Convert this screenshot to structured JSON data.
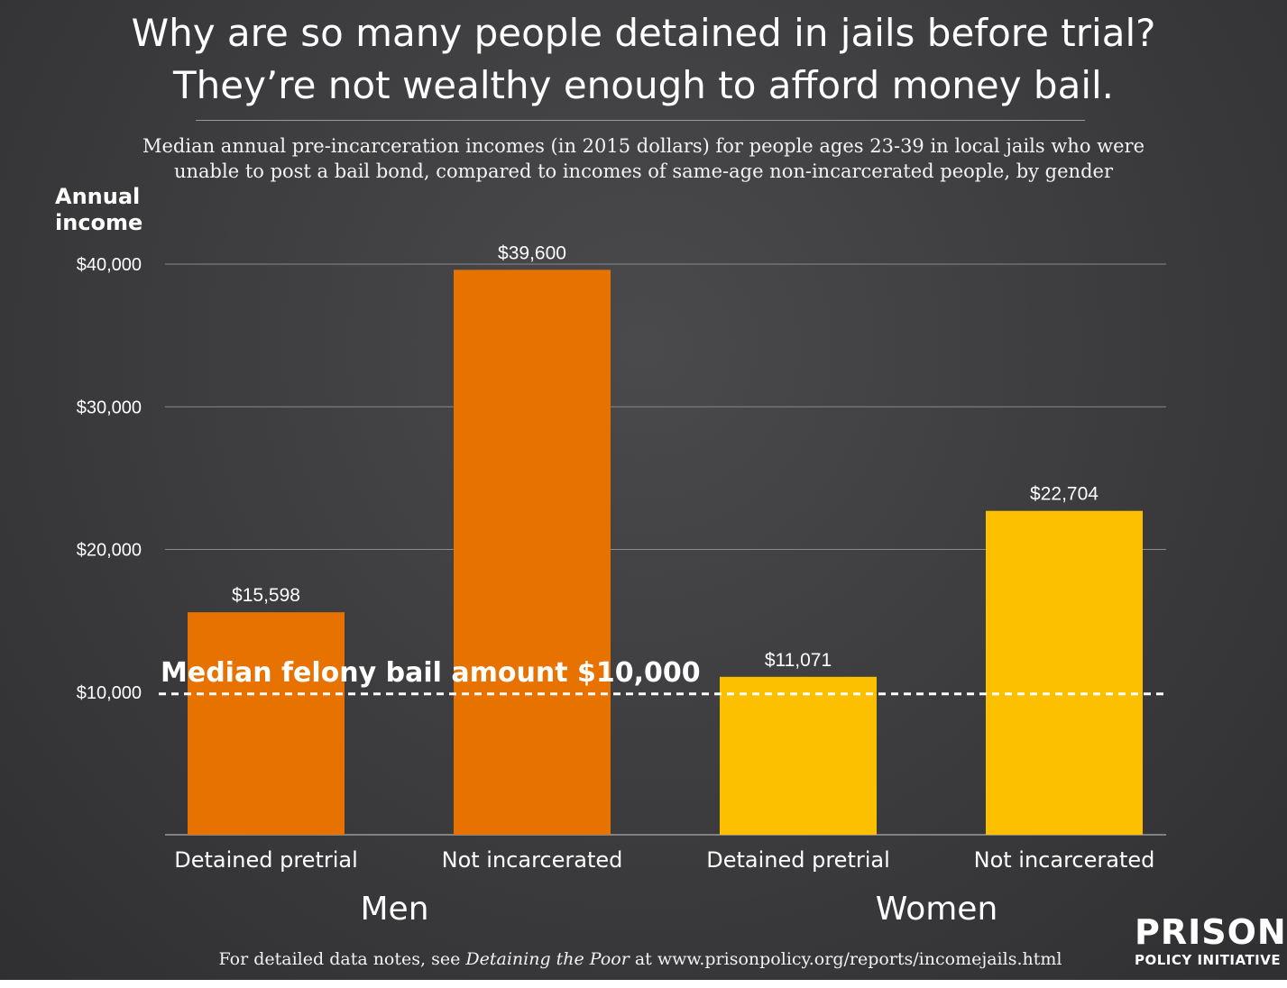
{
  "title_line1": "Why are so many people detained in jails before trial?",
  "title_line2": "They’re not wealthy enough to afford money bail.",
  "subtitle_line1": "Median annual pre-incarceration incomes (in 2015 dollars) for people ages 23-39 in local jails who were",
  "subtitle_line2": "unable to post a bail bond, compared to incomes of same-age non-incarcerated people, by gender",
  "ylabel_line1": "Annual",
  "ylabel_line2": "income",
  "footer": {
    "prefix": "For detailed data notes, see ",
    "italic": "Detaining the Poor",
    "suffix": " at www.prisonpolicy.org/reports/incomejails.html"
  },
  "logo": {
    "top": "PRISON",
    "bottom": "POLICY INITIATIVE"
  },
  "colors": {
    "men": "#e87200",
    "women": "#fdc000",
    "background": "#3f3f41"
  },
  "chart_data": {
    "type": "bar",
    "categories": [
      "Detained pretrial",
      "Not incarcerated",
      "Detained pretrial",
      "Not incarcerated"
    ],
    "groups": [
      {
        "label": "Men",
        "color": "#e87200",
        "indices": [
          0,
          1
        ]
      },
      {
        "label": "Women",
        "color": "#fdc000",
        "indices": [
          2,
          3
        ]
      }
    ],
    "values": [
      15598,
      39600,
      11071,
      22704
    ],
    "data_labels": [
      "$15,598",
      "$39,600",
      "$11,071",
      "$22,704"
    ],
    "yticks": [
      10000,
      20000,
      30000,
      40000
    ],
    "ytick_labels": [
      "$10,000",
      "$20,000",
      "$30,000",
      "$40,000"
    ],
    "ylim": [
      0,
      40000
    ],
    "grid": true,
    "reference_line": {
      "value": 10000,
      "label": "Median felony bail amount $10,000",
      "style": "dashed"
    }
  }
}
